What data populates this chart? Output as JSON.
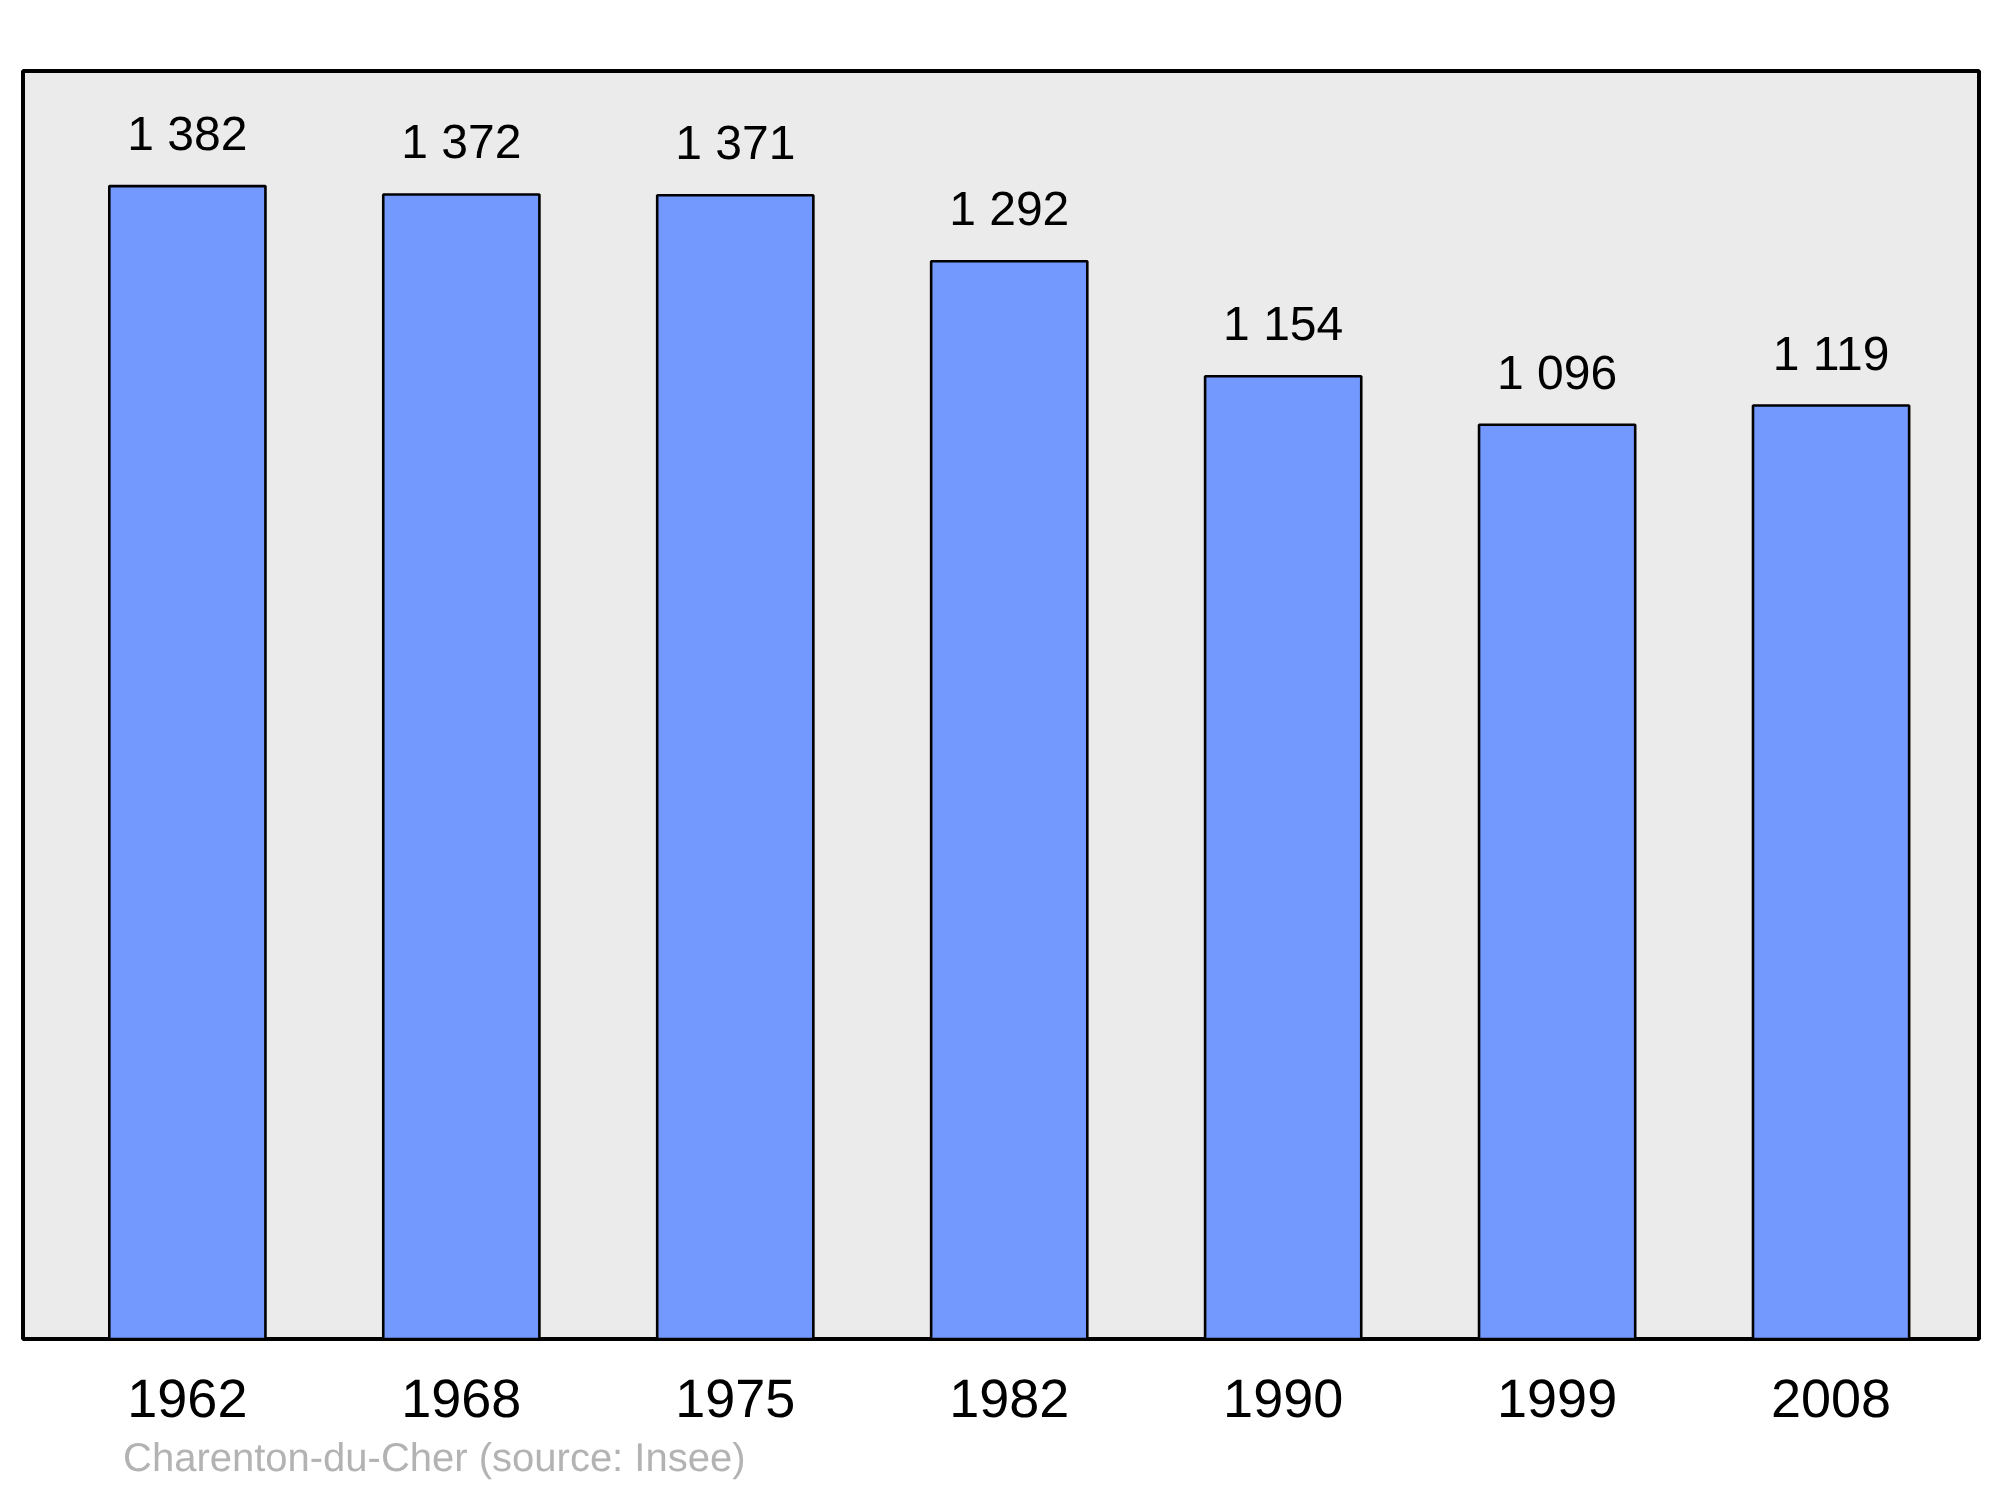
{
  "chart_data": {
    "type": "bar",
    "categories": [
      "1962",
      "1968",
      "1975",
      "1982",
      "1990",
      "1999",
      "2008"
    ],
    "values": [
      1382,
      1372,
      1371,
      1292,
      1154,
      1096,
      1119
    ],
    "value_labels": [
      "1 382",
      "1 372",
      "1 371",
      "1 292",
      "1 154",
      "1 096",
      "1 119"
    ],
    "color": "#7399ff",
    "ylim": [
      0,
      1520
    ],
    "grid": false,
    "tick_labels": "x",
    "annotations": [
      "Charenton-du-Cher    (source: Insee)"
    ]
  }
}
